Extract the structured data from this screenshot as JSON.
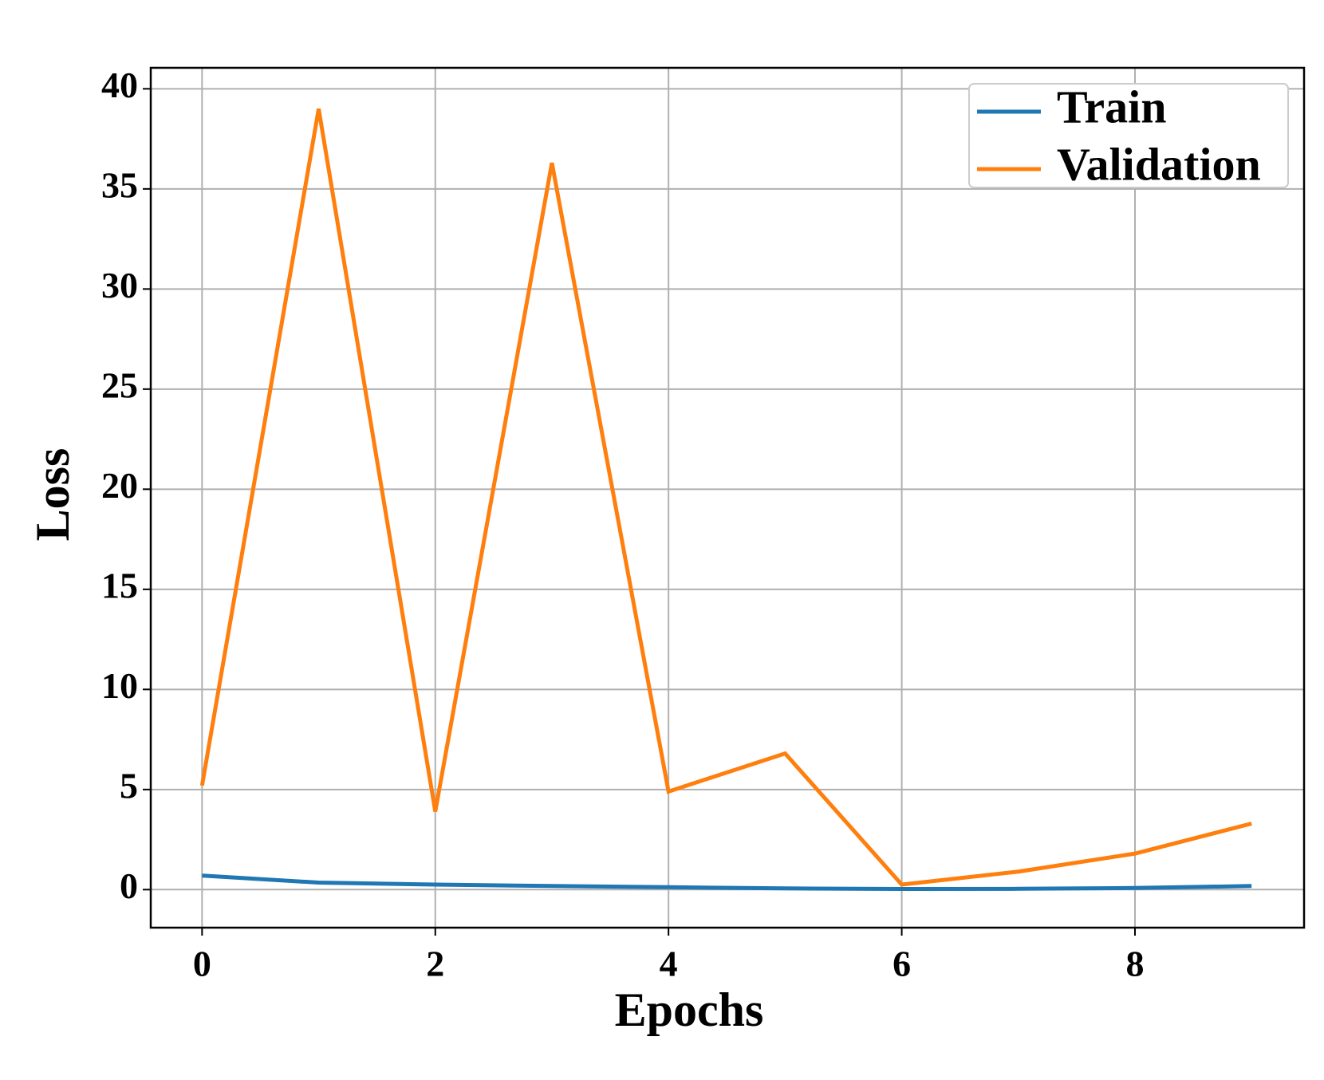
{
  "chart_data": {
    "type": "line",
    "x_label": "Epochs",
    "y_label": "Loss",
    "x": [
      0,
      1,
      2,
      3,
      4,
      5,
      6,
      7,
      8,
      9
    ],
    "series": [
      {
        "name": "Train",
        "color": "#1f77b4",
        "values": [
          0.7,
          0.35,
          0.25,
          0.18,
          0.12,
          0.06,
          0.03,
          0.04,
          0.08,
          0.18
        ]
      },
      {
        "name": "Validation",
        "color": "#ff7f0e",
        "values": [
          5.2,
          39.0,
          3.9,
          36.3,
          4.9,
          6.8,
          0.25,
          0.9,
          1.8,
          3.3
        ]
      }
    ],
    "xlim": [
      -0.44,
      9.45
    ],
    "ylim": [
      -1.9,
      41.05
    ],
    "xticks": [
      0,
      2,
      4,
      6,
      8
    ],
    "yticks": [
      0,
      5,
      10,
      15,
      20,
      25,
      30,
      35,
      40
    ],
    "grid": true,
    "legend": "upper right"
  }
}
